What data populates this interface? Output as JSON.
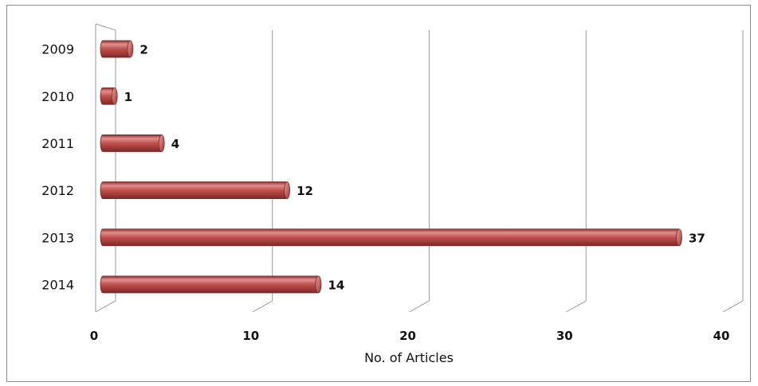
{
  "chart_data": {
    "type": "bar",
    "orientation": "horizontal",
    "style": "3d-cylinder",
    "categories": [
      "2009",
      "2010",
      "2011",
      "2012",
      "2013",
      "2014"
    ],
    "values": [
      2,
      1,
      4,
      12,
      37,
      14
    ],
    "data_labels": [
      "2",
      "1",
      "4",
      "12",
      "37",
      "14"
    ],
    "title": "",
    "xlabel": "No. of Articles",
    "ylabel": "",
    "xlim": [
      0,
      40
    ],
    "x_ticks": [
      "0",
      "10",
      "20",
      "30",
      "40"
    ],
    "grid": "vertical",
    "legend": "none",
    "colors": {
      "bar": "#c0504d",
      "bar_light": "#e08a88",
      "bar_dark": "#8e2f2d",
      "gridline": "#9a9a9a"
    }
  }
}
